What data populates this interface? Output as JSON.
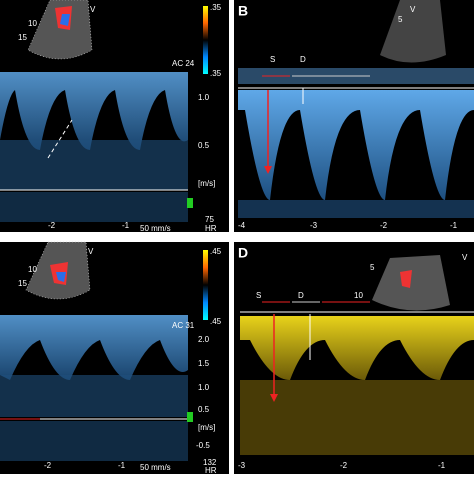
{
  "panels": [
    {
      "probe": {
        "v": "V",
        "depth1": "10",
        "depth2": "15"
      },
      "scale": {
        "top": ".35",
        "bottom": ".35"
      },
      "ac": "AC 24",
      "axis": [
        "1.0",
        "0.5"
      ],
      "unit": "[m/s]",
      "hr_value": "75",
      "hr": "HR",
      "time": [
        "-2",
        "-1"
      ],
      "speed": "50 mm/s"
    },
    {
      "label": "B",
      "probe": {
        "v": "V",
        "depth1": "5"
      },
      "s": "S",
      "d": "D",
      "time": [
        "-4",
        "-3",
        "-2",
        "-1"
      ]
    },
    {
      "probe": {
        "v": "V",
        "depth1": "10",
        "depth2": "15"
      },
      "scale": {
        "top": ".45",
        "bottom": ".45"
      },
      "ac": "AC 31",
      "axis": [
        "2.0",
        "1.5",
        "1.0",
        "0.5"
      ],
      "unit": "[m/s]",
      "neg": "-0.5",
      "hr_value": "132",
      "hr": "HR",
      "time": [
        "-2",
        "-1"
      ],
      "speed": "50 mm/s"
    },
    {
      "label": "D",
      "probe": {
        "v": "V",
        "depth1": "5",
        "depth2": "10"
      },
      "s": "S",
      "d": "D",
      "time": [
        "-3",
        "-2",
        "-1"
      ]
    }
  ]
}
